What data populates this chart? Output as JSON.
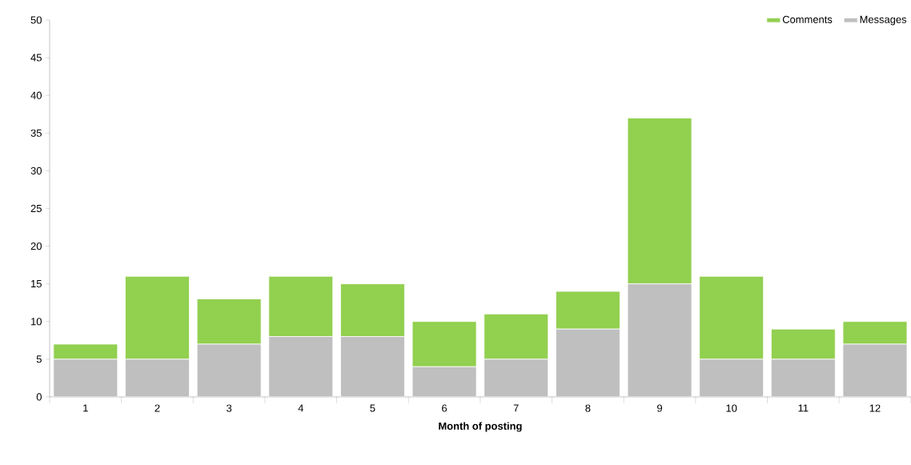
{
  "chart_data": {
    "type": "bar",
    "stacked": true,
    "xlabel": "Month of posting",
    "categories": [
      "1",
      "2",
      "3",
      "4",
      "5",
      "6",
      "7",
      "8",
      "9",
      "10",
      "11",
      "12"
    ],
    "series": [
      {
        "name": "Messages",
        "color": "#bfbfbf",
        "values": [
          5,
          5,
          7,
          8,
          8,
          4,
          5,
          9,
          15,
          5,
          5,
          7
        ]
      },
      {
        "name": "Comments",
        "color": "#92d050",
        "values": [
          2,
          11,
          6,
          8,
          7,
          6,
          6,
          5,
          22,
          11,
          4,
          3
        ]
      }
    ],
    "ylim": [
      0,
      50
    ],
    "yticks": [
      0,
      5,
      10,
      15,
      20,
      25,
      30,
      35,
      40,
      45,
      50
    ],
    "grid": false,
    "legend": "top right"
  }
}
